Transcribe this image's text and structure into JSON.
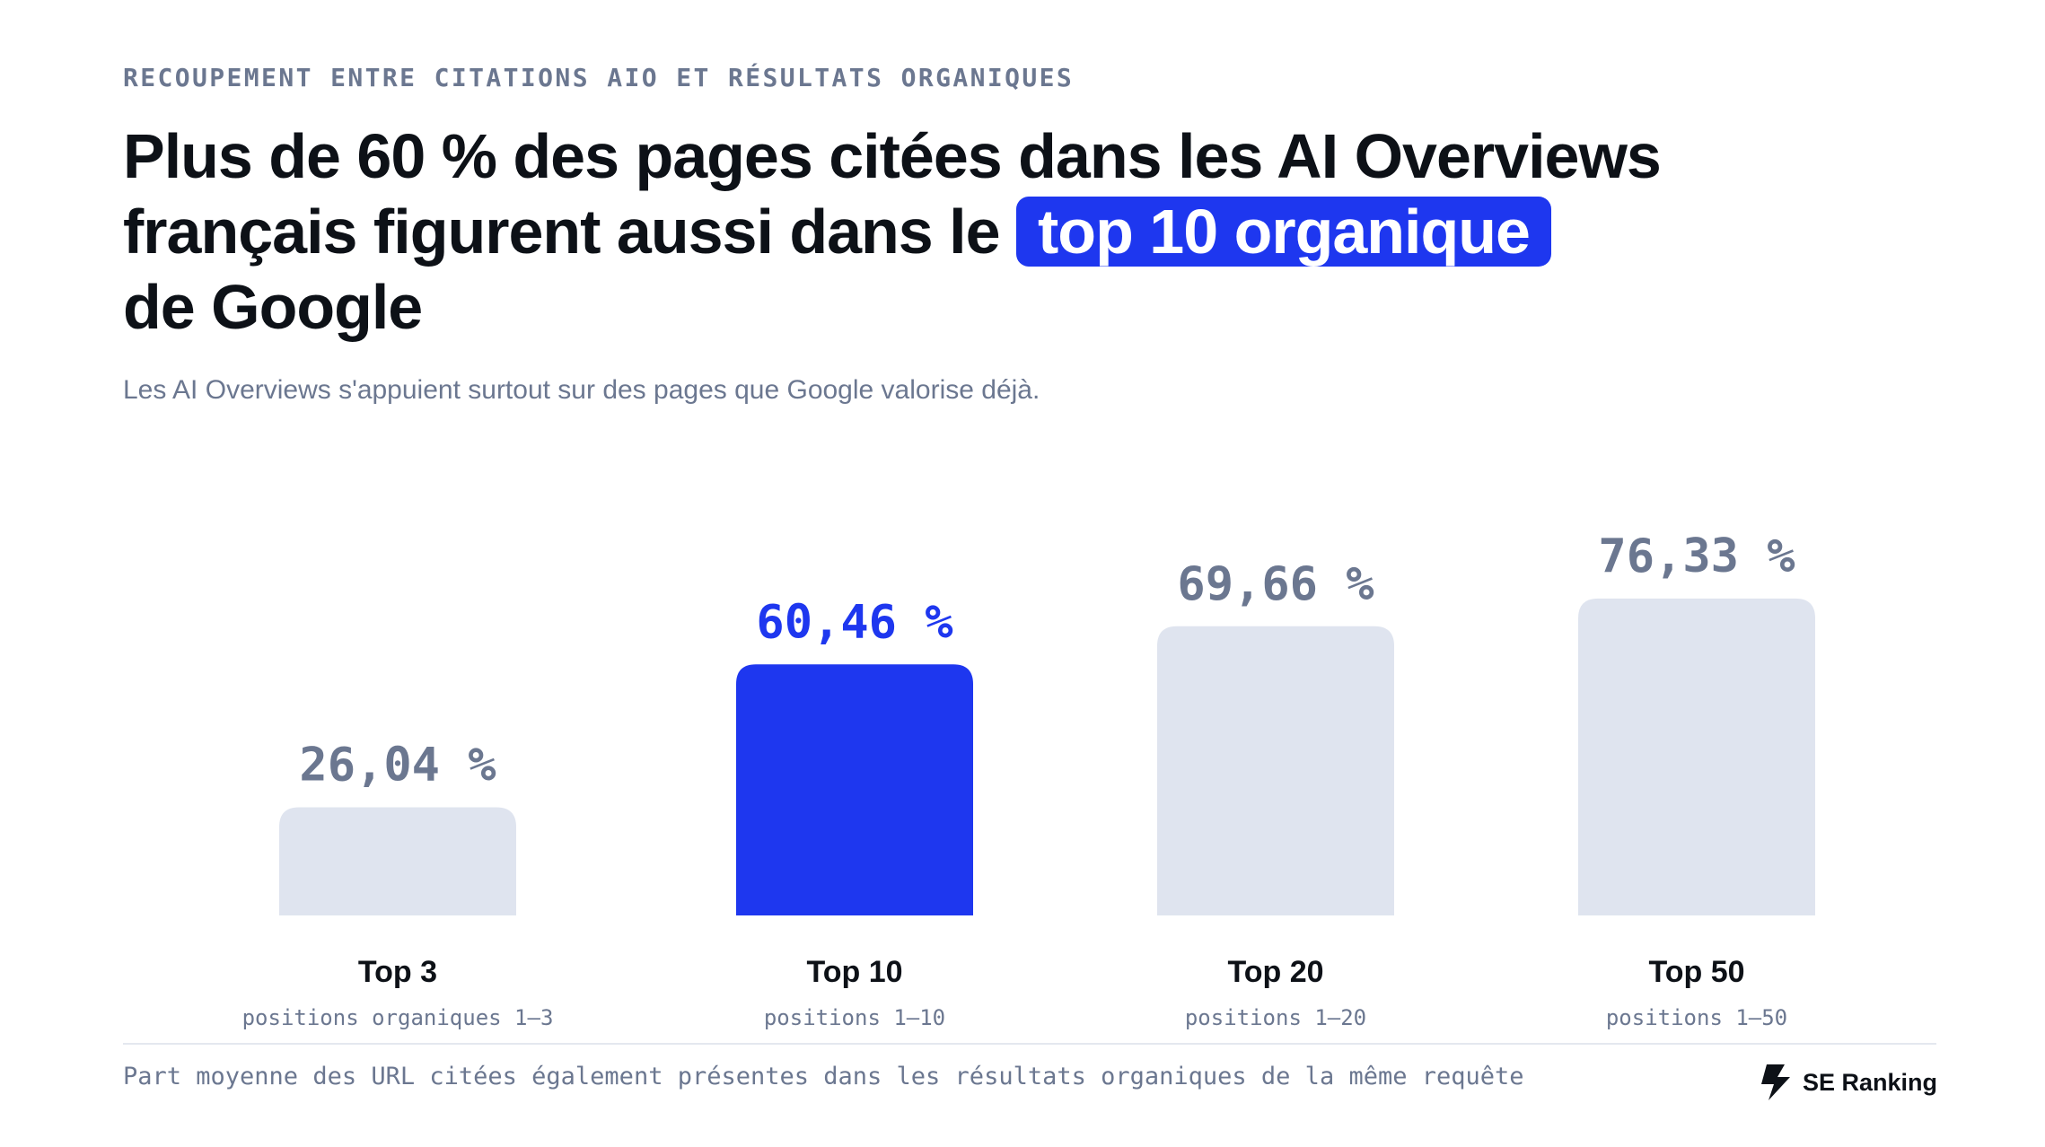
{
  "eyebrow": "RECOUPEMENT ENTRE CITATIONS AIO ET RÉSULTATS ORGANIQUES",
  "headline": {
    "line1": "Plus de 60 % des pages citées dans les AI Overviews",
    "line2_prefix": "français figurent aussi dans le ",
    "highlight": "top 10 organique",
    "line3": "de Google"
  },
  "subtitle": "Les AI Overviews s'appuient surtout sur des pages que Google valorise déjà.",
  "colors": {
    "highlight_bar": "#1e37ef",
    "default_bar": "#dfe4ef",
    "default_value": "#6b7790",
    "title": "#0d1117"
  },
  "chart_data": {
    "type": "bar",
    "title": "Plus de 60 % des pages citées dans les AI Overviews français figurent aussi dans le top 10 organique de Google",
    "categories": [
      "Top 3",
      "Top 10",
      "Top 20",
      "Top 50"
    ],
    "sublabels": [
      "positions organiques 1–3",
      "positions 1–10",
      "positions 1–20",
      "positions 1–50"
    ],
    "values": [
      26.04,
      60.46,
      69.66,
      76.33
    ],
    "value_labels": [
      "26,04 %",
      "60,46 %",
      "69,66 %",
      "76,33 %"
    ],
    "highlight_index": 1,
    "ylim": [
      0,
      100
    ],
    "grid": false,
    "legend": "none",
    "xlabel": "",
    "ylabel": ""
  },
  "footnote": "Part moyenne des URL citées également présentes dans les résultats organiques de la même requête",
  "brand": {
    "name": "SE Ranking",
    "icon": "se-ranking-logo-icon"
  }
}
